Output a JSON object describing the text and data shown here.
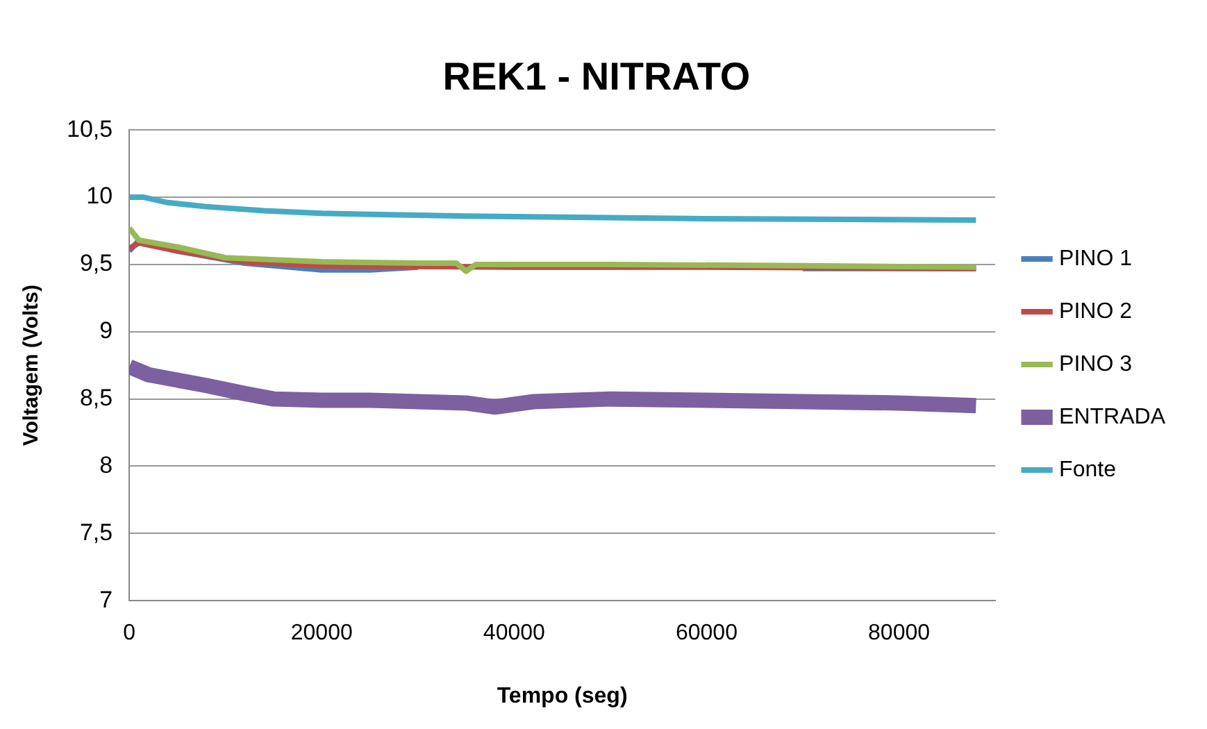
{
  "chart_data": {
    "type": "line",
    "title": "REK1 - NITRATO",
    "xlabel": "Tempo (seg)",
    "ylabel": "Voltagem (Volts)",
    "xlim": [
      0,
      90000
    ],
    "xticks": [
      0,
      20000,
      40000,
      60000,
      80000
    ],
    "ylim": [
      7,
      10.5
    ],
    "yticks": [
      {
        "value": 7,
        "label": "7"
      },
      {
        "value": 7.5,
        "label": "7,5"
      },
      {
        "value": 8,
        "label": "8"
      },
      {
        "value": 8.5,
        "label": "8,5"
      },
      {
        "value": 9,
        "label": "9"
      },
      {
        "value": 9.5,
        "label": "9,5"
      },
      {
        "value": 10,
        "label": "10"
      },
      {
        "value": 10.5,
        "label": "10,5"
      }
    ],
    "grid": "y",
    "legend": "right",
    "marker": "none",
    "line_style": "solid",
    "series": [
      {
        "name": "PINO 1",
        "color": "#4a7ebb",
        "x": [
          0,
          1000,
          5000,
          12000,
          20000,
          25000,
          30000,
          50000,
          70000,
          88000
        ],
        "values": [
          9.6,
          9.68,
          9.6,
          9.51,
          9.46,
          9.46,
          9.48,
          null,
          9.47,
          9.47
        ]
      },
      {
        "name": "PINO 2",
        "color": "#be4b48",
        "x": [
          0,
          1000,
          5000,
          12000,
          20000,
          40000,
          60000,
          88000
        ],
        "values": [
          9.62,
          9.66,
          9.6,
          9.52,
          9.49,
          9.48,
          9.48,
          9.47
        ]
      },
      {
        "name": "PINO 3",
        "color": "#98b954",
        "x": [
          0,
          1000,
          5000,
          10000,
          20000,
          30000,
          34000,
          35000,
          36000,
          38000,
          50000,
          70000,
          88000
        ],
        "values": [
          9.77,
          9.68,
          9.63,
          9.55,
          9.52,
          9.51,
          9.51,
          9.45,
          9.5,
          9.5,
          9.5,
          9.49,
          9.48
        ]
      },
      {
        "name": "ENTRADA",
        "color": "#7d60a0",
        "x": [
          0,
          2000,
          5000,
          8000,
          12000,
          15000,
          20000,
          25000,
          30000,
          35000,
          38000,
          42000,
          50000,
          60000,
          70000,
          80000,
          88000
        ],
        "values": [
          8.74,
          8.68,
          8.64,
          8.6,
          8.54,
          8.5,
          8.49,
          8.49,
          8.48,
          8.47,
          8.44,
          8.48,
          8.5,
          8.49,
          8.48,
          8.47,
          8.45
        ]
      },
      {
        "name": "Fonte",
        "color": "#46aac5",
        "x": [
          0,
          1500,
          4000,
          8000,
          14000,
          20000,
          35000,
          60000,
          88000
        ],
        "values": [
          10,
          10,
          9.96,
          9.93,
          9.9,
          9.88,
          9.86,
          9.84,
          9.83
        ]
      }
    ]
  }
}
